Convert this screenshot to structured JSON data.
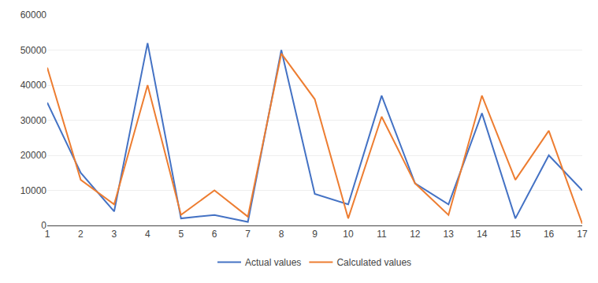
{
  "chart_data": {
    "type": "line",
    "x": [
      1,
      2,
      3,
      4,
      5,
      6,
      7,
      8,
      9,
      10,
      11,
      12,
      13,
      14,
      15,
      16,
      17
    ],
    "series": [
      {
        "name": "Actual values",
        "color": "#4472C4",
        "values": [
          35000,
          15000,
          4000,
          52000,
          2000,
          3000,
          1000,
          50000,
          9000,
          6000,
          37000,
          12000,
          6000,
          32000,
          2000,
          20000,
          10000
        ]
      },
      {
        "name": "Calculated values",
        "color": "#ED7D31",
        "values": [
          45000,
          13000,
          6000,
          40000,
          3000,
          10000,
          2500,
          49000,
          36000,
          2000,
          31000,
          12000,
          3000,
          37000,
          13000,
          27000,
          500
        ]
      }
    ],
    "xlim": [
      1,
      17
    ],
    "xticks": [
      1,
      2,
      3,
      4,
      5,
      6,
      7,
      8,
      9,
      10,
      11,
      12,
      13,
      14,
      15,
      16,
      17
    ],
    "ylim": [
      0,
      60000
    ],
    "yticks": [
      0,
      10000,
      20000,
      30000,
      40000,
      50000,
      60000
    ],
    "grid": true,
    "legend": "bottom"
  }
}
